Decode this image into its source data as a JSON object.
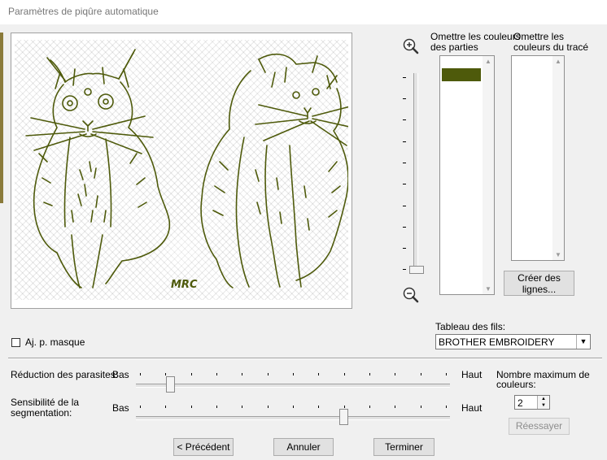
{
  "window": {
    "title": "Paramètres de piqûre automatique"
  },
  "preview": {
    "signature": "MRC",
    "thread_color": "#4e5a0b"
  },
  "zoom": {
    "in_icon": "zoom-in-icon",
    "out_icon": "zoom-out-icon",
    "level": 0
  },
  "omit_parts": {
    "label_line1": "Omettre les couleurs",
    "label_line2": "des parties",
    "selected_swatch": "#4e5a0b"
  },
  "omit_outline": {
    "label_line1": "Omettre les",
    "label_line2": "couleurs du tracé"
  },
  "create_lines_button": {
    "line1": "Créer des",
    "line2": "lignes..."
  },
  "mask": {
    "label": "Aj. p. masque",
    "checked": false
  },
  "thread_table": {
    "label": "Tableau des fils:",
    "value": "BROTHER EMBROIDERY"
  },
  "noise_reduction": {
    "label": "Réduction des parasites:",
    "low": "Bas",
    "high": "Haut",
    "value": 0.11
  },
  "segmentation": {
    "label_line1": "Sensibilité de la",
    "label_line2": "segmentation:",
    "low": "Bas",
    "high": "Haut",
    "value": 0.66
  },
  "max_colors": {
    "label_line1": "Nombre maximum de",
    "label_line2": "couleurs:",
    "value": "2"
  },
  "retry_button": {
    "label": "Réessayer"
  },
  "footer": {
    "previous": "< Précédent",
    "cancel": "Annuler",
    "finish": "Terminer"
  }
}
